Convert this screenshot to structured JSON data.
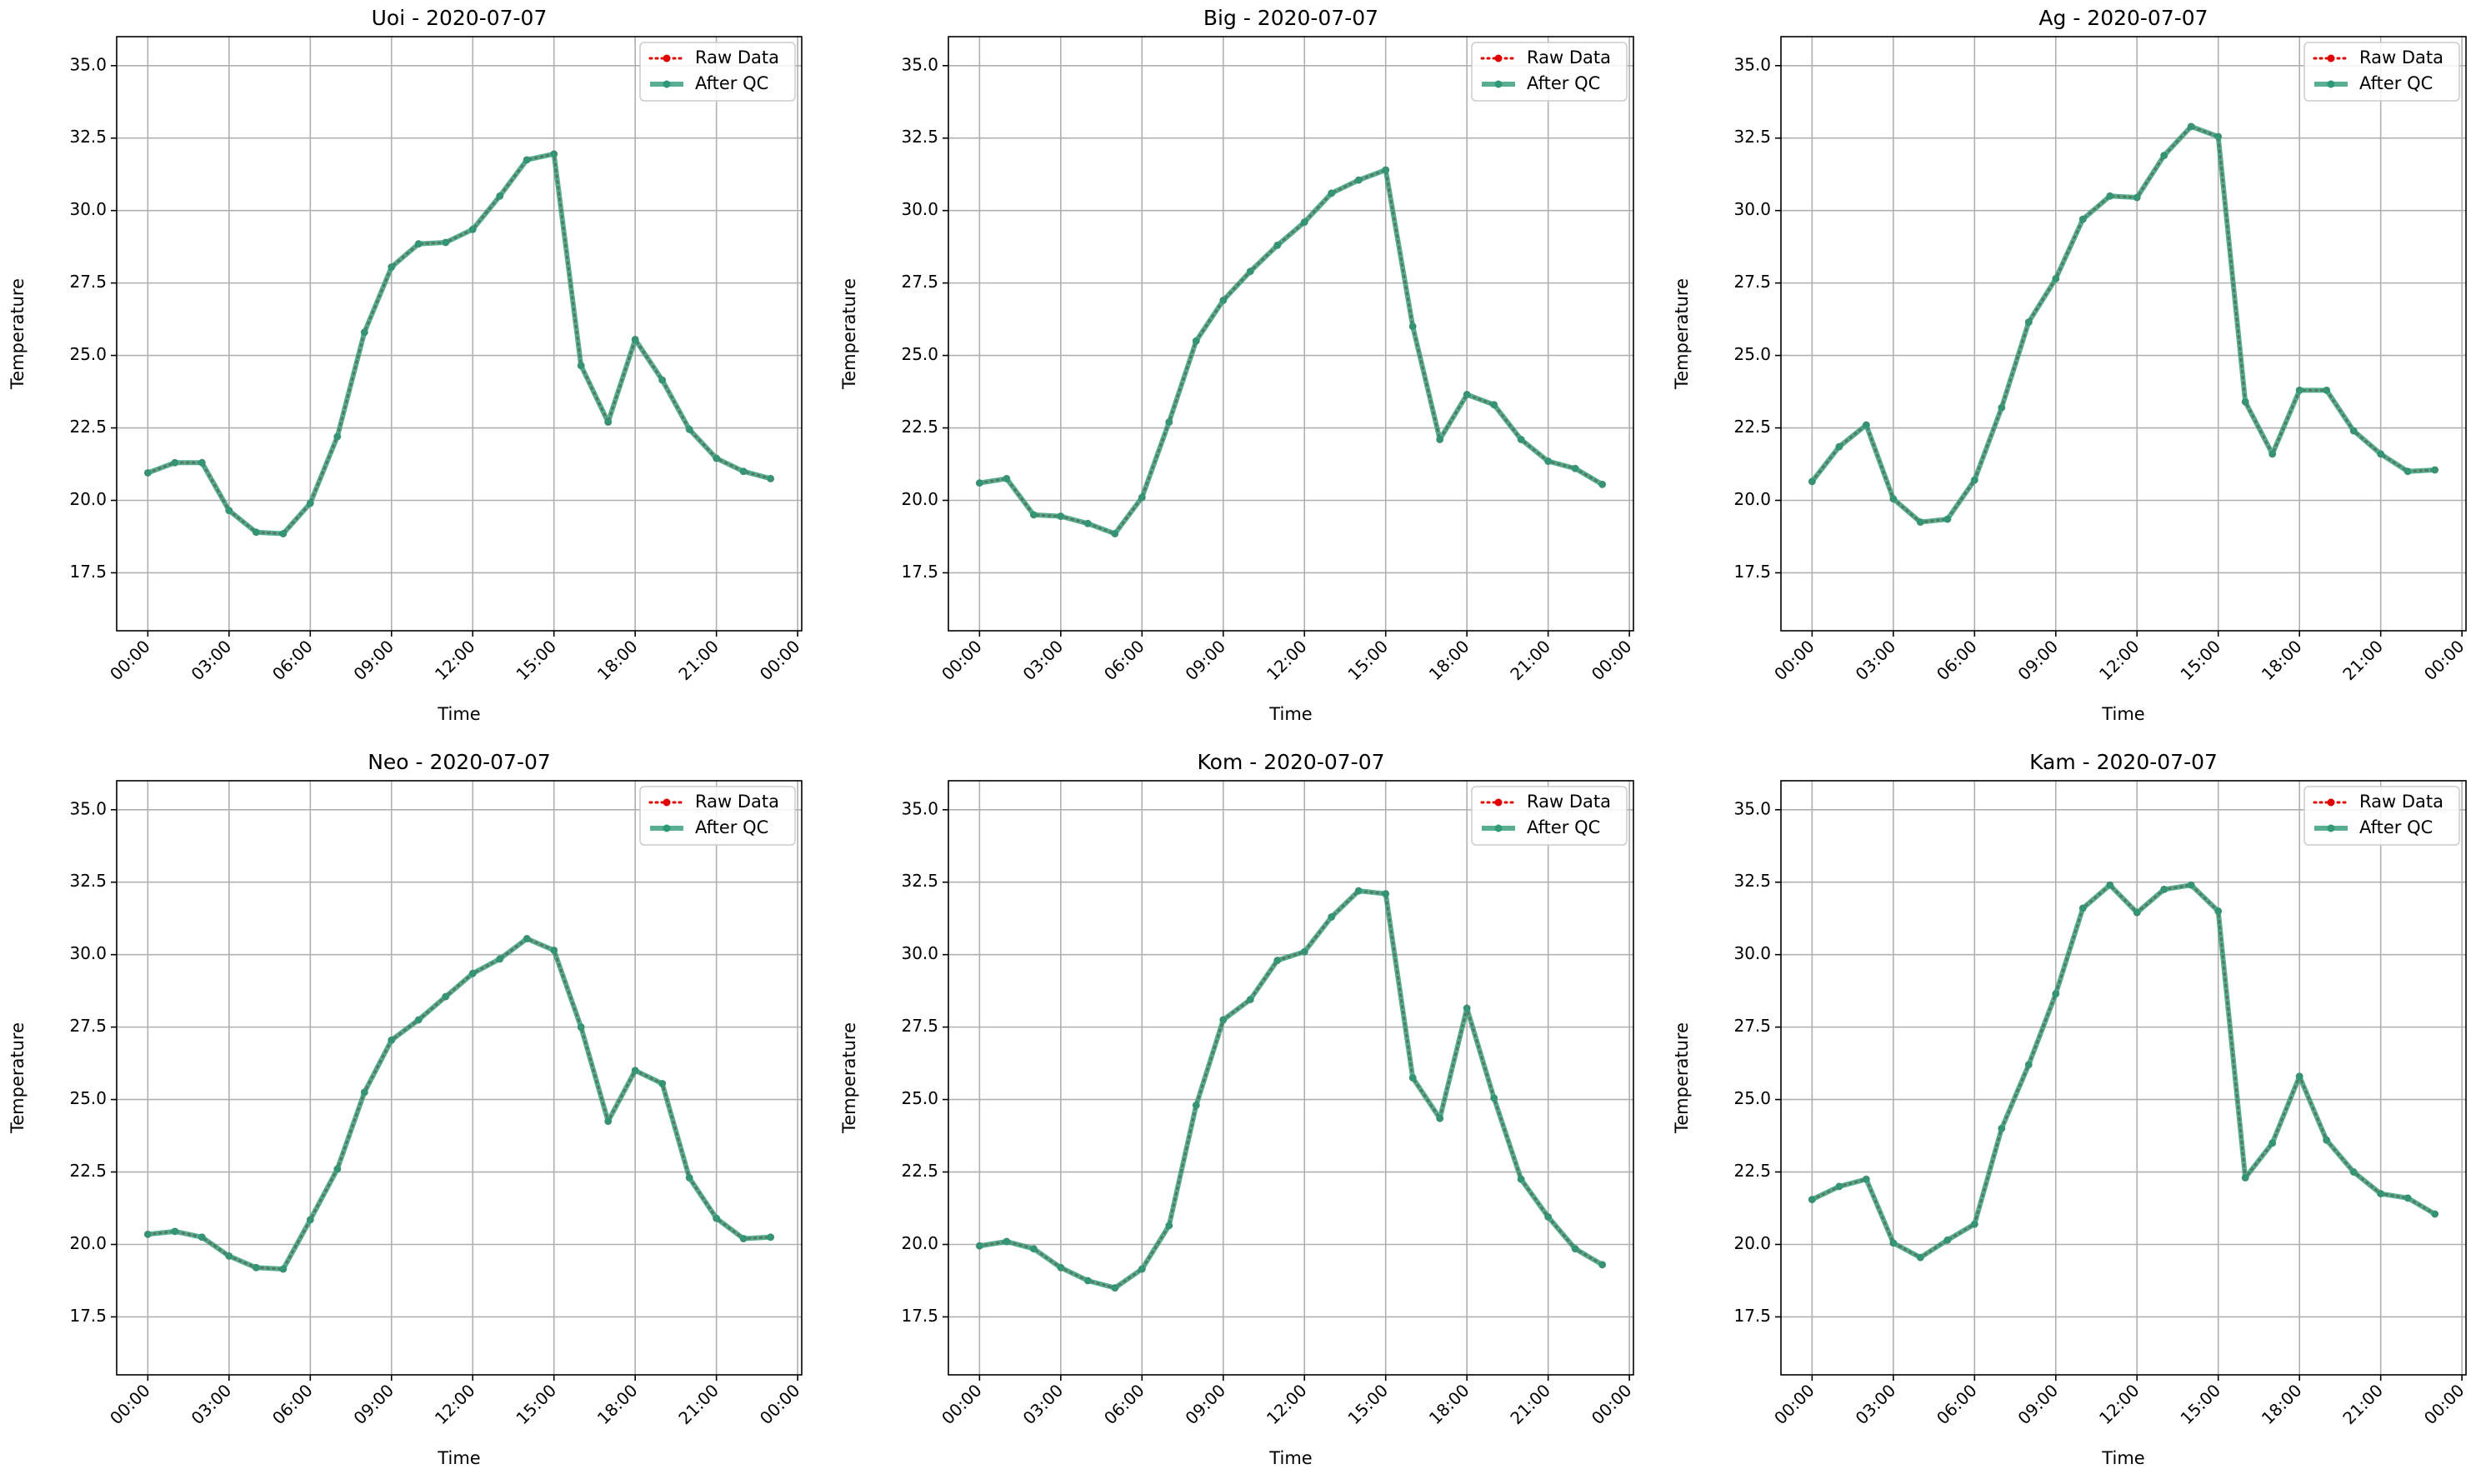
{
  "figure": {
    "date": "2020-07-07",
    "colors": {
      "raw": "#e00000",
      "qc": "#2e9a78",
      "grid": "#b0b0b0"
    }
  },
  "chart_data": [
    {
      "type": "line",
      "title": "Uoi - 2020-07-07",
      "xlabel": "Time",
      "ylabel": "Temperature",
      "xticks": [
        "00:00",
        "03:00",
        "06:00",
        "09:00",
        "12:00",
        "15:00",
        "18:00",
        "21:00",
        "00:00"
      ],
      "yticks": [
        "17.5",
        "20.0",
        "22.5",
        "25.0",
        "27.5",
        "30.0",
        "32.5",
        "35.0"
      ],
      "ylim": [
        15.5,
        36.0
      ],
      "xlim_hours": [
        -1.15,
        24.15
      ],
      "x_hours": [
        0,
        1,
        2,
        3,
        4,
        5,
        6,
        7,
        8,
        9,
        10,
        11,
        12,
        13,
        14,
        15,
        16,
        17,
        18,
        19,
        20,
        21,
        22,
        23
      ],
      "legend": [
        "Raw Data",
        "After QC"
      ],
      "legend_position": "upper right",
      "grid": true,
      "series": [
        {
          "name": "Raw Data",
          "style": "dotted",
          "values": [
            20.95,
            21.3,
            21.3,
            19.65,
            18.9,
            18.85,
            19.9,
            22.2,
            25.8,
            28.05,
            28.85,
            28.9,
            29.35,
            30.5,
            31.75,
            31.95,
            24.65,
            22.7,
            25.55,
            24.15,
            22.45,
            21.45,
            21.0,
            20.75
          ]
        },
        {
          "name": "After QC",
          "style": "solid",
          "values": [
            20.95,
            21.3,
            21.3,
            19.65,
            18.9,
            18.85,
            19.9,
            22.2,
            25.8,
            28.05,
            28.85,
            28.9,
            29.35,
            30.5,
            31.75,
            31.95,
            24.65,
            22.7,
            25.55,
            24.15,
            22.45,
            21.45,
            21.0,
            20.75
          ]
        }
      ]
    },
    {
      "type": "line",
      "title": "Big - 2020-07-07",
      "xlabel": "Time",
      "ylabel": "Temperature",
      "xticks": [
        "00:00",
        "03:00",
        "06:00",
        "09:00",
        "12:00",
        "15:00",
        "18:00",
        "21:00",
        "00:00"
      ],
      "yticks": [
        "17.5",
        "20.0",
        "22.5",
        "25.0",
        "27.5",
        "30.0",
        "32.5",
        "35.0"
      ],
      "ylim": [
        15.5,
        36.0
      ],
      "xlim_hours": [
        -1.15,
        24.15
      ],
      "x_hours": [
        0,
        1,
        2,
        3,
        4,
        5,
        6,
        7,
        8,
        9,
        10,
        11,
        12,
        13,
        14,
        15,
        16,
        17,
        18,
        19,
        20,
        21,
        22,
        23
      ],
      "legend": [
        "Raw Data",
        "After QC"
      ],
      "legend_position": "upper right",
      "grid": true,
      "series": [
        {
          "name": "Raw Data",
          "style": "dotted",
          "values": [
            20.6,
            20.75,
            19.5,
            19.45,
            19.2,
            18.85,
            20.1,
            22.7,
            25.5,
            26.9,
            27.9,
            28.8,
            29.6,
            30.6,
            31.05,
            31.4,
            26.0,
            22.1,
            23.65,
            23.3,
            22.1,
            21.35,
            21.1,
            20.55
          ]
        },
        {
          "name": "After QC",
          "style": "solid",
          "values": [
            20.6,
            20.75,
            19.5,
            19.45,
            19.2,
            18.85,
            20.1,
            22.7,
            25.5,
            26.9,
            27.9,
            28.8,
            29.6,
            30.6,
            31.05,
            31.4,
            26.0,
            22.1,
            23.65,
            23.3,
            22.1,
            21.35,
            21.1,
            20.55
          ]
        }
      ]
    },
    {
      "type": "line",
      "title": "Ag - 2020-07-07",
      "xlabel": "Time",
      "ylabel": "Temperature",
      "xticks": [
        "00:00",
        "03:00",
        "06:00",
        "09:00",
        "12:00",
        "15:00",
        "18:00",
        "21:00",
        "00:00"
      ],
      "yticks": [
        "17.5",
        "20.0",
        "22.5",
        "25.0",
        "27.5",
        "30.0",
        "32.5",
        "35.0"
      ],
      "ylim": [
        15.5,
        36.0
      ],
      "xlim_hours": [
        -1.15,
        24.15
      ],
      "x_hours": [
        0,
        1,
        2,
        3,
        4,
        5,
        6,
        7,
        8,
        9,
        10,
        11,
        12,
        13,
        14,
        15,
        16,
        17,
        18,
        19,
        20,
        21,
        22,
        23
      ],
      "legend": [
        "Raw Data",
        "After QC"
      ],
      "legend_position": "upper right",
      "grid": true,
      "series": [
        {
          "name": "Raw Data",
          "style": "dotted",
          "values": [
            20.65,
            21.85,
            22.6,
            20.05,
            19.25,
            19.35,
            20.7,
            23.2,
            26.15,
            27.65,
            29.7,
            30.5,
            30.45,
            31.9,
            32.9,
            32.55,
            23.4,
            21.6,
            23.8,
            23.8,
            22.4,
            21.6,
            21.0,
            21.05
          ]
        },
        {
          "name": "After QC",
          "style": "solid",
          "values": [
            20.65,
            21.85,
            22.6,
            20.05,
            19.25,
            19.35,
            20.7,
            23.2,
            26.15,
            27.65,
            29.7,
            30.5,
            30.45,
            31.9,
            32.9,
            32.55,
            23.4,
            21.6,
            23.8,
            23.8,
            22.4,
            21.6,
            21.0,
            21.05
          ]
        }
      ]
    },
    {
      "type": "line",
      "title": "Neo - 2020-07-07",
      "xlabel": "Time",
      "ylabel": "Temperature",
      "xticks": [
        "00:00",
        "03:00",
        "06:00",
        "09:00",
        "12:00",
        "15:00",
        "18:00",
        "21:00",
        "00:00"
      ],
      "yticks": [
        "17.5",
        "20.0",
        "22.5",
        "25.0",
        "27.5",
        "30.0",
        "32.5",
        "35.0"
      ],
      "ylim": [
        15.5,
        36.0
      ],
      "xlim_hours": [
        -1.15,
        24.15
      ],
      "x_hours": [
        0,
        1,
        2,
        3,
        4,
        5,
        6,
        7,
        8,
        9,
        10,
        11,
        12,
        13,
        14,
        15,
        16,
        17,
        18,
        19,
        20,
        21,
        22,
        23
      ],
      "legend": [
        "Raw Data",
        "After QC"
      ],
      "legend_position": "upper right",
      "grid": true,
      "series": [
        {
          "name": "Raw Data",
          "style": "dotted",
          "values": [
            20.35,
            20.45,
            20.25,
            19.6,
            19.2,
            19.15,
            20.85,
            22.6,
            25.25,
            27.05,
            27.75,
            28.55,
            29.35,
            29.85,
            30.55,
            30.15,
            27.5,
            24.25,
            26.0,
            25.55,
            22.3,
            20.9,
            20.2,
            20.25
          ]
        },
        {
          "name": "After QC",
          "style": "solid",
          "values": [
            20.35,
            20.45,
            20.25,
            19.6,
            19.2,
            19.15,
            20.85,
            22.6,
            25.25,
            27.05,
            27.75,
            28.55,
            29.35,
            29.85,
            30.55,
            30.15,
            27.5,
            24.25,
            26.0,
            25.55,
            22.3,
            20.9,
            20.2,
            20.25
          ]
        }
      ]
    },
    {
      "type": "line",
      "title": "Kom - 2020-07-07",
      "xlabel": "Time",
      "ylabel": "Temperature",
      "xticks": [
        "00:00",
        "03:00",
        "06:00",
        "09:00",
        "12:00",
        "15:00",
        "18:00",
        "21:00",
        "00:00"
      ],
      "yticks": [
        "17.5",
        "20.0",
        "22.5",
        "25.0",
        "27.5",
        "30.0",
        "32.5",
        "35.0"
      ],
      "ylim": [
        15.5,
        36.0
      ],
      "xlim_hours": [
        -1.15,
        24.15
      ],
      "x_hours": [
        0,
        1,
        2,
        3,
        4,
        5,
        6,
        7,
        8,
        9,
        10,
        11,
        12,
        13,
        14,
        15,
        16,
        17,
        18,
        19,
        20,
        21,
        22,
        23
      ],
      "legend": [
        "Raw Data",
        "After QC"
      ],
      "legend_position": "upper right",
      "grid": true,
      "series": [
        {
          "name": "Raw Data",
          "style": "dotted",
          "values": [
            19.95,
            20.1,
            19.85,
            19.2,
            18.75,
            18.5,
            19.15,
            20.65,
            24.8,
            27.75,
            28.45,
            29.8,
            30.1,
            31.3,
            32.2,
            32.1,
            25.75,
            24.35,
            28.15,
            25.05,
            22.25,
            20.95,
            19.85,
            19.3
          ]
        },
        {
          "name": "After QC",
          "style": "solid",
          "values": [
            19.95,
            20.1,
            19.85,
            19.2,
            18.75,
            18.5,
            19.15,
            20.65,
            24.8,
            27.75,
            28.45,
            29.8,
            30.1,
            31.3,
            32.2,
            32.1,
            25.75,
            24.35,
            28.15,
            25.05,
            22.25,
            20.95,
            19.85,
            19.3
          ]
        }
      ]
    },
    {
      "type": "line",
      "title": "Kam - 2020-07-07",
      "xlabel": "Time",
      "ylabel": "Temperature",
      "xticks": [
        "00:00",
        "03:00",
        "06:00",
        "09:00",
        "12:00",
        "15:00",
        "18:00",
        "21:00",
        "00:00"
      ],
      "yticks": [
        "17.5",
        "20.0",
        "22.5",
        "25.0",
        "27.5",
        "30.0",
        "32.5",
        "35.0"
      ],
      "ylim": [
        15.5,
        36.0
      ],
      "xlim_hours": [
        -1.15,
        24.15
      ],
      "x_hours": [
        0,
        1,
        2,
        3,
        4,
        5,
        6,
        7,
        8,
        9,
        10,
        11,
        12,
        13,
        14,
        15,
        16,
        17,
        18,
        19,
        20,
        21,
        22,
        23
      ],
      "legend": [
        "Raw Data",
        "After QC"
      ],
      "legend_position": "upper right",
      "grid": true,
      "series": [
        {
          "name": "Raw Data",
          "style": "dotted",
          "values": [
            21.55,
            22.0,
            22.25,
            20.05,
            19.55,
            20.15,
            20.7,
            24.0,
            26.2,
            28.65,
            31.6,
            32.4,
            31.45,
            32.25,
            32.4,
            31.5,
            22.3,
            23.5,
            25.8,
            23.6,
            22.5,
            21.75,
            21.6,
            21.05
          ]
        },
        {
          "name": "After QC",
          "style": "solid",
          "values": [
            21.55,
            22.0,
            22.25,
            20.05,
            19.55,
            20.15,
            20.7,
            24.0,
            26.2,
            28.65,
            31.6,
            32.4,
            31.45,
            32.25,
            32.4,
            31.5,
            22.3,
            23.5,
            25.8,
            23.6,
            22.5,
            21.75,
            21.6,
            21.05
          ]
        }
      ]
    }
  ]
}
